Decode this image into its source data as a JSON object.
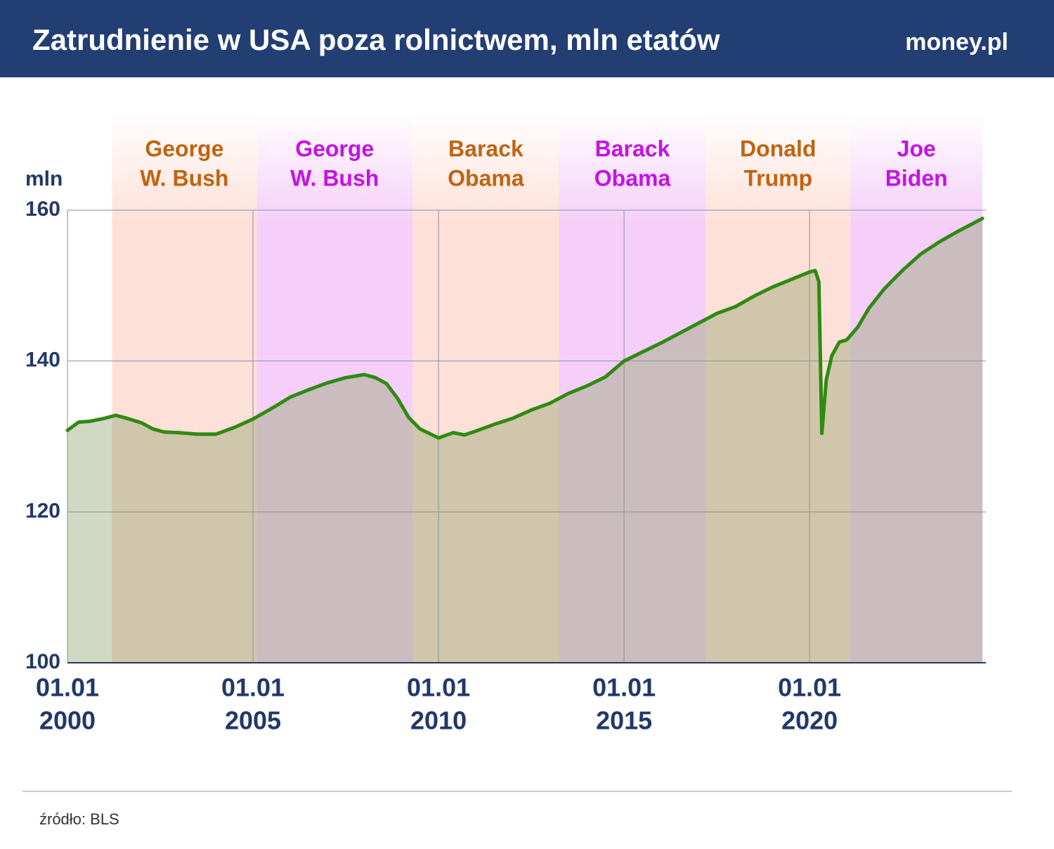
{
  "header": {
    "brand": "money.pl"
  },
  "source": "źródło: BLS",
  "chart_data": {
    "type": "line",
    "title": "Zatrudnienie w USA poza rolnictwem, mln etatów",
    "y_label": "mln",
    "xlim": [
      2000,
      2024.75
    ],
    "ylim": [
      100,
      160
    ],
    "yticks": [
      100,
      120,
      140,
      160
    ],
    "xticks": [
      {
        "value": 2000,
        "label": [
          "01.01",
          "2000"
        ]
      },
      {
        "value": 2005,
        "label": [
          "01.01",
          "2005"
        ]
      },
      {
        "value": 2010,
        "label": [
          "01.01",
          "2010"
        ]
      },
      {
        "value": 2015,
        "label": [
          "01.01",
          "2015"
        ]
      },
      {
        "value": 2020,
        "label": [
          "01.01",
          "2020"
        ]
      }
    ],
    "grid": true,
    "terms": [
      {
        "name": [
          "George",
          "W. Bush"
        ],
        "start": 2001.2,
        "end": 2005.1,
        "color": "#c0640f",
        "fill": "#fde0d8"
      },
      {
        "name": [
          "George",
          "W. Bush"
        ],
        "start": 2005.1,
        "end": 2009.3,
        "color": "#c412e6",
        "fill": "#f5cff9"
      },
      {
        "name": [
          "Barack",
          "Obama"
        ],
        "start": 2009.3,
        "end": 2013.25,
        "color": "#c0640f",
        "fill": "#fde0d8"
      },
      {
        "name": [
          "Barack",
          "Obama"
        ],
        "start": 2013.25,
        "end": 2017.2,
        "color": "#c412e6",
        "fill": "#f5cff9"
      },
      {
        "name": [
          "Donald",
          "Trump"
        ],
        "start": 2017.2,
        "end": 2021.1,
        "color": "#c0640f",
        "fill": "#fde0d8"
      },
      {
        "name": [
          "Joe",
          "Biden"
        ],
        "start": 2021.1,
        "end": 2024.66,
        "color": "#c412e6",
        "fill": "#f5cff9"
      }
    ],
    "series": [
      {
        "color": "#2f8a12",
        "area_color": "#8a9f6a",
        "x": [
          2000.0,
          2000.3,
          2000.6,
          2001.0,
          2001.3,
          2001.6,
          2002.0,
          2002.3,
          2002.6,
          2003.0,
          2003.5,
          2004.0,
          2004.5,
          2005.0,
          2005.5,
          2006.0,
          2006.5,
          2007.0,
          2007.5,
          2008.0,
          2008.3,
          2008.6,
          2008.9,
          2009.2,
          2009.5,
          2010.0,
          2010.4,
          2010.7,
          2011.0,
          2011.5,
          2012.0,
          2012.5,
          2013.0,
          2013.5,
          2014.0,
          2014.5,
          2015.0,
          2015.5,
          2016.0,
          2016.5,
          2017.0,
          2017.5,
          2018.0,
          2018.5,
          2019.0,
          2019.5,
          2020.0,
          2020.15,
          2020.25,
          2020.33,
          2020.45,
          2020.6,
          2020.8,
          2021.0,
          2021.3,
          2021.6,
          2022.0,
          2022.5,
          2023.0,
          2023.5,
          2024.0,
          2024.66
        ],
        "values": [
          130.8,
          131.9,
          132.0,
          132.4,
          132.8,
          132.4,
          131.8,
          131.0,
          130.6,
          130.5,
          130.3,
          130.3,
          131.2,
          132.3,
          133.7,
          135.2,
          136.2,
          137.1,
          137.8,
          138.2,
          137.8,
          137.0,
          135.0,
          132.5,
          131.0,
          129.8,
          130.5,
          130.2,
          130.7,
          131.6,
          132.4,
          133.5,
          134.4,
          135.7,
          136.7,
          137.9,
          140.0,
          141.2,
          142.4,
          143.7,
          145.0,
          146.3,
          147.2,
          148.6,
          149.8,
          150.8,
          151.8,
          152.0,
          150.5,
          130.4,
          137.5,
          140.7,
          142.5,
          142.8,
          144.5,
          147.0,
          149.5,
          152.0,
          154.2,
          155.8,
          157.2,
          158.9
        ]
      }
    ]
  }
}
